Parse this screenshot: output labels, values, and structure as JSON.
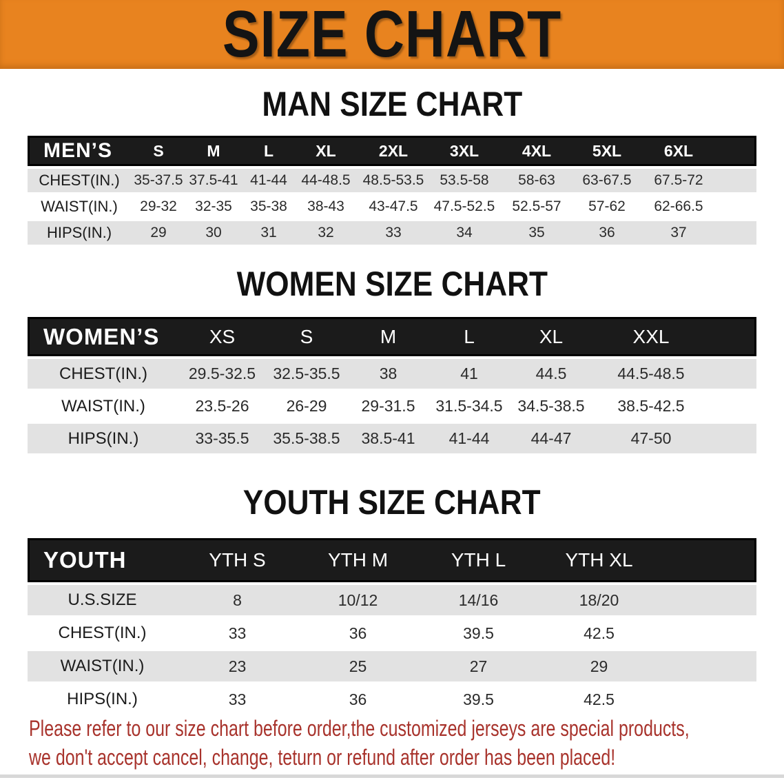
{
  "banner": {
    "title": "SIZE CHART"
  },
  "sections": [
    {
      "id": "men",
      "heading": "MAN SIZE CHART",
      "header_label": "MEN’S",
      "columns": [
        "S",
        "M",
        "L",
        "XL",
        "2XL",
        "3XL",
        "4XL",
        "5XL",
        "6XL"
      ],
      "rows": [
        {
          "label": "CHEST(IN.)",
          "values": [
            "35-37.5",
            "37.5-41",
            "41-44",
            "44-48.5",
            "48.5-53.5",
            "53.5-58",
            "58-63",
            "63-67.5",
            "67.5-72"
          ]
        },
        {
          "label": "WAIST(IN.)",
          "values": [
            "29-32",
            "32-35",
            "35-38",
            "38-43",
            "43-47.5",
            "47.5-52.5",
            "52.5-57",
            "57-62",
            "62-66.5"
          ]
        },
        {
          "label": "HIPS(IN.)",
          "values": [
            "29",
            "30",
            "31",
            "32",
            "33",
            "34",
            "35",
            "36",
            "37"
          ]
        }
      ]
    },
    {
      "id": "women",
      "heading": "WOMEN SIZE CHART",
      "header_label": "WOMEN’S",
      "columns": [
        "XS",
        "S",
        "M",
        "L",
        "XL",
        "XXL"
      ],
      "rows": [
        {
          "label": "CHEST(IN.)",
          "values": [
            "29.5-32.5",
            "32.5-35.5",
            "38",
            "41",
            "44.5",
            "44.5-48.5"
          ]
        },
        {
          "label": "WAIST(IN.)",
          "values": [
            "23.5-26",
            "26-29",
            "29-31.5",
            "31.5-34.5",
            "34.5-38.5",
            "38.5-42.5"
          ]
        },
        {
          "label": "HIPS(IN.)",
          "values": [
            "33-35.5",
            "35.5-38.5",
            "38.5-41",
            "41-44",
            "44-47",
            "47-50"
          ]
        }
      ]
    },
    {
      "id": "youth",
      "heading": "YOUTH SIZE CHART",
      "header_label": "YOUTH",
      "columns": [
        "YTH S",
        "YTH M",
        "YTH L",
        "YTH XL"
      ],
      "rows": [
        {
          "label": "U.S.SIZE",
          "values": [
            "8",
            "10/12",
            "14/16",
            "18/20"
          ]
        },
        {
          "label": "CHEST(IN.)",
          "values": [
            "33",
            "36",
            "39.5",
            "42.5"
          ]
        },
        {
          "label": "WAIST(IN.)",
          "values": [
            "23",
            "25",
            "27",
            "29"
          ]
        },
        {
          "label": "HIPS(IN.)",
          "values": [
            "33",
            "36",
            "39.5",
            "42.5"
          ]
        }
      ]
    }
  ],
  "footer": {
    "line1": "Please refer to our size chart before order,the customized jerseys are special products,",
    "line2": "we don't accept cancel, change, teturn or refund after order has been placed!"
  },
  "colors": {
    "banner_bg": "#E8831F",
    "table_header_bg": "#1B1B1B",
    "stripe_gray": "#E2E2E2",
    "notice_red": "#A8332C"
  }
}
